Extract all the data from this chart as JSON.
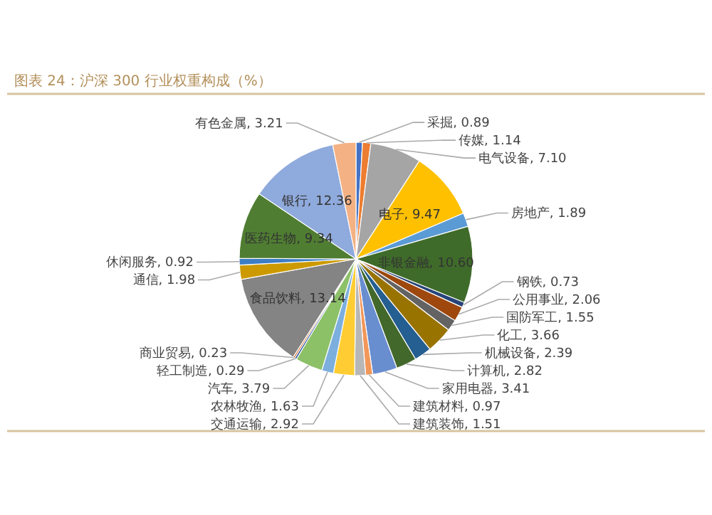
{
  "chart_data": {
    "type": "pie",
    "title": "图表 24：沪深 300 行业权重构成（%）",
    "categories": [
      "采掘",
      "传媒",
      "电气设备",
      "电子",
      "房地产",
      "非银金融",
      "钢铁",
      "公用事业",
      "国防军工",
      "化工",
      "机械设备",
      "计算机",
      "家用电器",
      "建筑材料",
      "建筑装饰",
      "交通运输",
      "农林牧渔",
      "汽车",
      "轻工制造",
      "商业贸易",
      "食品饮料",
      "通信",
      "休闲服务",
      "医药生物",
      "银行",
      "有色金属"
    ],
    "values": [
      0.89,
      1.14,
      7.1,
      9.47,
      1.89,
      10.6,
      0.73,
      2.06,
      1.55,
      3.66,
      2.39,
      2.82,
      3.41,
      0.97,
      1.51,
      2.92,
      1.63,
      3.79,
      0.29,
      0.23,
      13.14,
      1.98,
      0.92,
      9.34,
      12.36,
      3.21
    ],
    "colors": [
      "#4472c4",
      "#ed7d31",
      "#a5a5a5",
      "#ffc000",
      "#5b9bd5",
      "#3f6b2a",
      "#264478",
      "#9e480e",
      "#636363",
      "#997300",
      "#255e91",
      "#43682b",
      "#698ed0",
      "#f1975a",
      "#b7b7b7",
      "#ffcd33",
      "#7cafdd",
      "#8cc168",
      "#335aa1",
      "#d26012",
      "#848484",
      "#cc9a00",
      "#3c7dc4",
      "#4f7d32",
      "#8faadc",
      "#f4b183"
    ],
    "value_labels": [
      ", 0.89",
      ", 1.14",
      ", 7.10",
      ", 9.47",
      ", 1.89",
      ", 10.60",
      ", 0.73",
      ", 2.06",
      ", 1.55",
      ", 3.66",
      ", 2.39",
      ", 2.82",
      ", 3.41",
      ", 0.97",
      ", 1.51",
      ", 2.92",
      ", 1.63",
      ", 3.79",
      ", 0.29",
      ", 0.23",
      ", 13.14",
      ", 1.98",
      ", 0.92",
      ", 9.34",
      ", 12.36",
      ", 3.21"
    ],
    "legend": false
  }
}
